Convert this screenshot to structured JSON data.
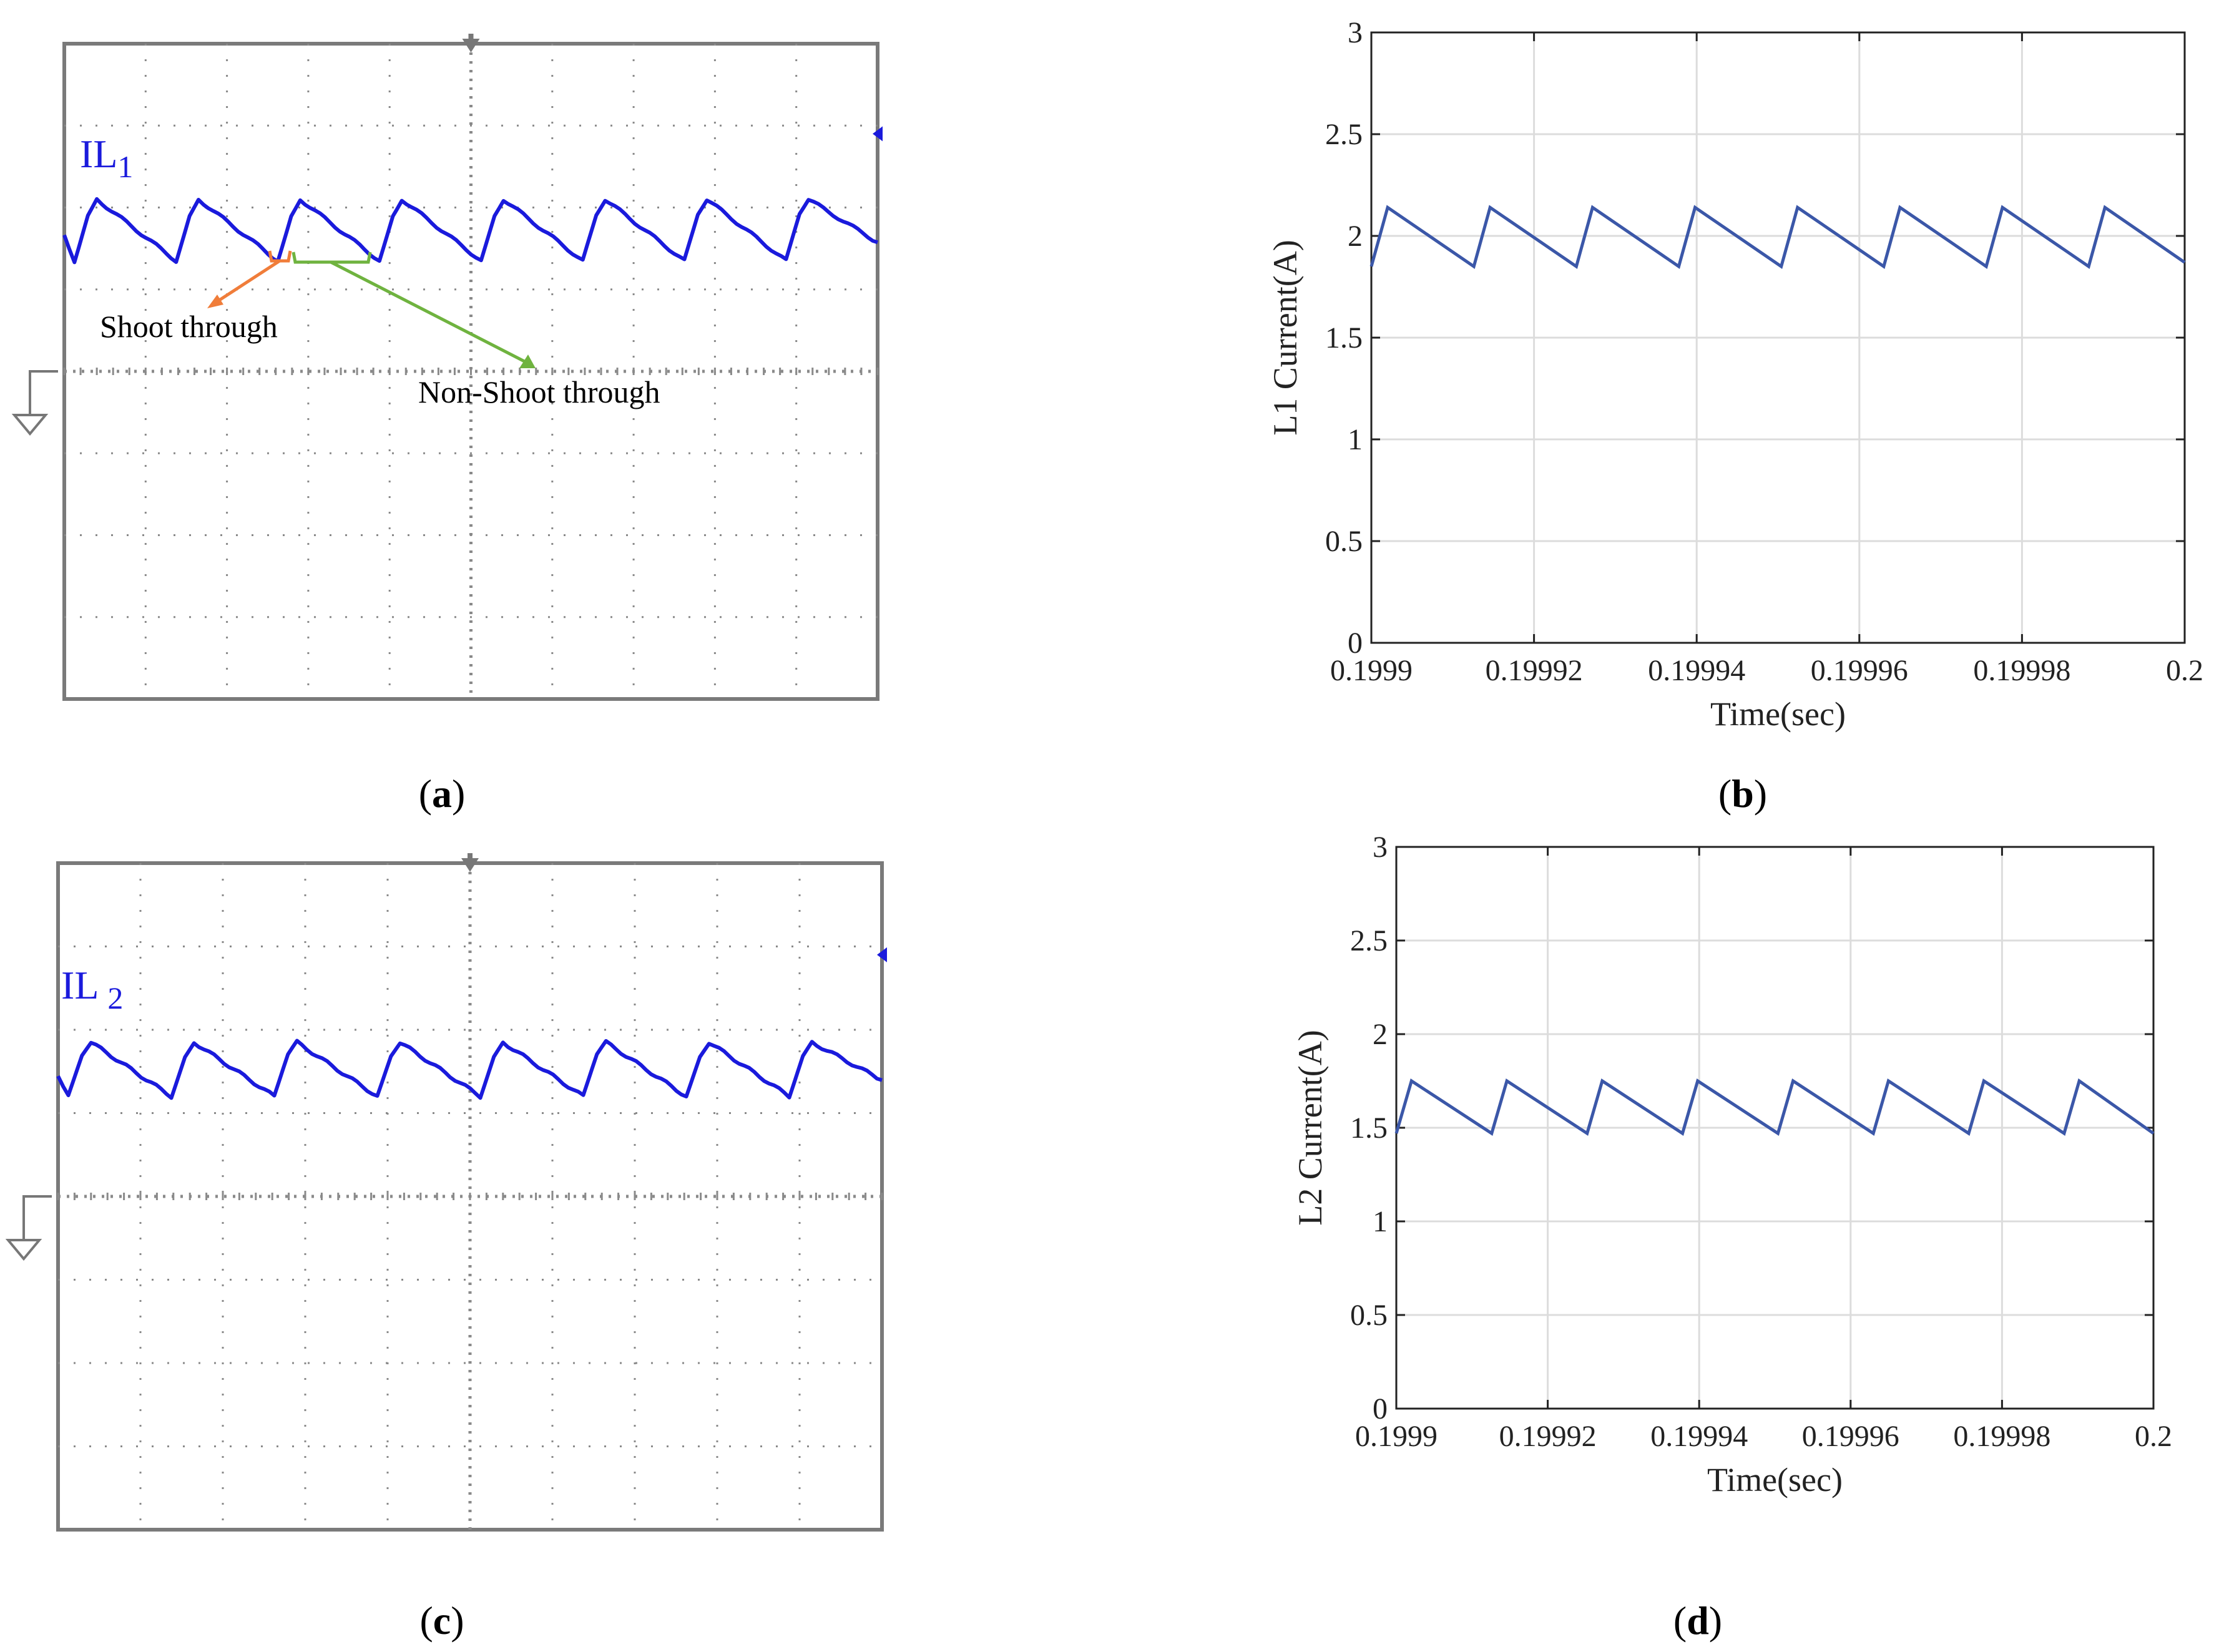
{
  "colors": {
    "scope_trace": "#1a1adc",
    "scope_label": "#1a1adc",
    "scope_grid": "#8a8a8a",
    "scope_frame": "#7a7a7a",
    "sim_line": "#3b57a8",
    "sim_grid": "#dcdcdc",
    "shoot_through": "#f07d3a",
    "non_shoot_through": "#6fb33f"
  },
  "captions": {
    "a": {
      "open": "(",
      "letter": "a",
      "close": ")"
    },
    "b": {
      "open": "(",
      "letter": "b",
      "close": ")"
    },
    "c": {
      "open": "(",
      "letter": "c",
      "close": ")"
    },
    "d": {
      "open": "(",
      "letter": "d",
      "close": ")"
    }
  },
  "scope_a": {
    "label_main": "IL",
    "label_sub": "1",
    "annotations": {
      "shoot_through": "Shoot through",
      "non_shoot_through": "Non-Shoot through"
    },
    "icons": [
      "trigger-marker-icon",
      "channel-level-icon",
      "ground-reference-icon"
    ]
  },
  "scope_c": {
    "label_main": "IL",
    "label_sub": "2",
    "icons": [
      "trigger-marker-icon",
      "channel-level-icon",
      "ground-reference-icon"
    ]
  },
  "chart_data": [
    {
      "id": "a",
      "type": "line",
      "title": "",
      "trace": "IL1",
      "description": "oscilloscope capture, 8 sawtooth periods, 10x8 divisions",
      "x_divisions": 10,
      "y_divisions": 8,
      "periods": 8,
      "peak_div": 6.1,
      "valley_div": 5.35
    },
    {
      "id": "b",
      "type": "line",
      "title": "",
      "xlabel": "Time(sec)",
      "ylabel": "L1 Current(A)",
      "xlim": [
        0.1999,
        0.2
      ],
      "ylim": [
        0,
        3
      ],
      "xticks": [
        "0.1999",
        "0.19992",
        "0.19994",
        "0.19996",
        "0.19998",
        "0.2"
      ],
      "yticks": [
        "0",
        "0.5",
        "1",
        "1.5",
        "2",
        "2.5",
        "3"
      ],
      "grid": true,
      "series": [
        {
          "name": "L1 Current",
          "x": [
            0.1999,
            0.199902,
            0.1999126,
            0.1999146,
            0.1999252,
            0.1999272,
            0.1999378,
            0.1999398,
            0.1999504,
            0.1999524,
            0.199963,
            0.199965,
            0.1999756,
            0.1999776,
            0.1999882,
            0.1999902,
            0.2
          ],
          "y": [
            1.85,
            2.14,
            1.85,
            2.14,
            1.85,
            2.14,
            1.85,
            2.14,
            1.85,
            2.14,
            1.85,
            2.14,
            1.85,
            2.14,
            1.85,
            2.14,
            1.87
          ]
        }
      ]
    },
    {
      "id": "c",
      "type": "line",
      "title": "",
      "trace": "IL2",
      "description": "oscilloscope capture, 8 sawtooth periods, 10x8 divisions",
      "x_divisions": 10,
      "y_divisions": 8,
      "periods": 8,
      "peak_div": 5.85,
      "valley_div": 5.2
    },
    {
      "id": "d",
      "type": "line",
      "title": "",
      "xlabel": "Time(sec)",
      "ylabel": "L2 Current(A)",
      "xlim": [
        0.1999,
        0.2
      ],
      "ylim": [
        0,
        3
      ],
      "xticks": [
        "0.1999",
        "0.19992",
        "0.19994",
        "0.19996",
        "0.19998",
        "0.2"
      ],
      "yticks": [
        "0",
        "0.5",
        "1",
        "1.5",
        "2",
        "2.5",
        "3"
      ],
      "grid": true,
      "series": [
        {
          "name": "L2 Current",
          "x": [
            0.1999,
            0.199902,
            0.1999126,
            0.1999146,
            0.1999252,
            0.1999272,
            0.1999378,
            0.1999398,
            0.1999504,
            0.1999524,
            0.199963,
            0.199965,
            0.1999756,
            0.1999776,
            0.1999882,
            0.1999902,
            0.2
          ],
          "y": [
            1.47,
            1.75,
            1.47,
            1.75,
            1.47,
            1.75,
            1.47,
            1.75,
            1.47,
            1.75,
            1.47,
            1.75,
            1.47,
            1.75,
            1.47,
            1.75,
            1.47
          ]
        }
      ]
    }
  ]
}
